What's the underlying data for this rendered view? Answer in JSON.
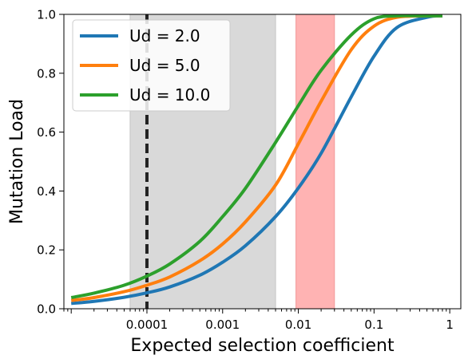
{
  "chart_data": {
    "type": "line",
    "xlabel": "Expected selection coefficient",
    "ylabel": "Mutation Load",
    "x_scale": "log",
    "xlim": [
      8e-06,
      1.4
    ],
    "ylim": [
      0,
      1
    ],
    "x_ticks": [
      {
        "value": 0.0001,
        "label": "0.0001"
      },
      {
        "value": 0.001,
        "label": "0.001"
      },
      {
        "value": 0.01,
        "label": "0.01"
      },
      {
        "value": 0.1,
        "label": "0.1"
      },
      {
        "value": 1,
        "label": "1"
      }
    ],
    "y_ticks": [
      {
        "value": 0,
        "label": "0.0"
      },
      {
        "value": 0.2,
        "label": "0.2"
      },
      {
        "value": 0.4,
        "label": "0.4"
      },
      {
        "value": 0.6,
        "label": "0.6"
      },
      {
        "value": 0.8,
        "label": "0.8"
      },
      {
        "value": 1,
        "label": "1.0"
      }
    ],
    "grid": false,
    "legend_position": "top-left",
    "shaded_regions": [
      {
        "x_range": [
          6e-05,
          0.005
        ],
        "color": "#d9d9d9"
      },
      {
        "x_range": [
          0.0093,
          0.03
        ],
        "color": "#ffb3b3"
      }
    ],
    "vertical_lines": [
      {
        "x": 0.0001,
        "style": "dashed",
        "color": "#222222"
      }
    ],
    "series": [
      {
        "name": "Ud = 2.0",
        "color": "#1f77b4",
        "x": [
          1e-05,
          2e-05,
          5e-05,
          0.0001,
          0.0002,
          0.0005,
          0.001,
          0.002,
          0.005,
          0.01,
          0.02,
          0.05,
          0.1,
          0.2,
          0.5,
          0.8
        ],
        "y": [
          0.018,
          0.025,
          0.039,
          0.054,
          0.074,
          0.114,
          0.158,
          0.214,
          0.313,
          0.41,
          0.528,
          0.72,
          0.858,
          0.955,
          0.99,
          0.995
        ]
      },
      {
        "name": "Ud = 5.0",
        "color": "#ff7f0e",
        "x": [
          1e-05,
          2e-05,
          5e-05,
          0.0001,
          0.0002,
          0.0005,
          0.001,
          0.002,
          0.005,
          0.01,
          0.02,
          0.05,
          0.1,
          0.2,
          0.5,
          0.8
        ],
        "y": [
          0.028,
          0.038,
          0.058,
          0.08,
          0.108,
          0.163,
          0.22,
          0.295,
          0.42,
          0.56,
          0.705,
          0.88,
          0.96,
          0.99,
          0.995,
          0.995
        ]
      },
      {
        "name": "Ud = 10.0",
        "color": "#2ca02c",
        "x": [
          1e-05,
          2e-05,
          5e-05,
          0.0001,
          0.0002,
          0.0005,
          0.001,
          0.002,
          0.005,
          0.01,
          0.02,
          0.05,
          0.1,
          0.2,
          0.5,
          0.8
        ],
        "y": [
          0.038,
          0.053,
          0.08,
          0.111,
          0.152,
          0.229,
          0.313,
          0.409,
          0.565,
          0.69,
          0.81,
          0.93,
          0.985,
          0.995,
          0.995,
          0.995
        ]
      }
    ]
  }
}
